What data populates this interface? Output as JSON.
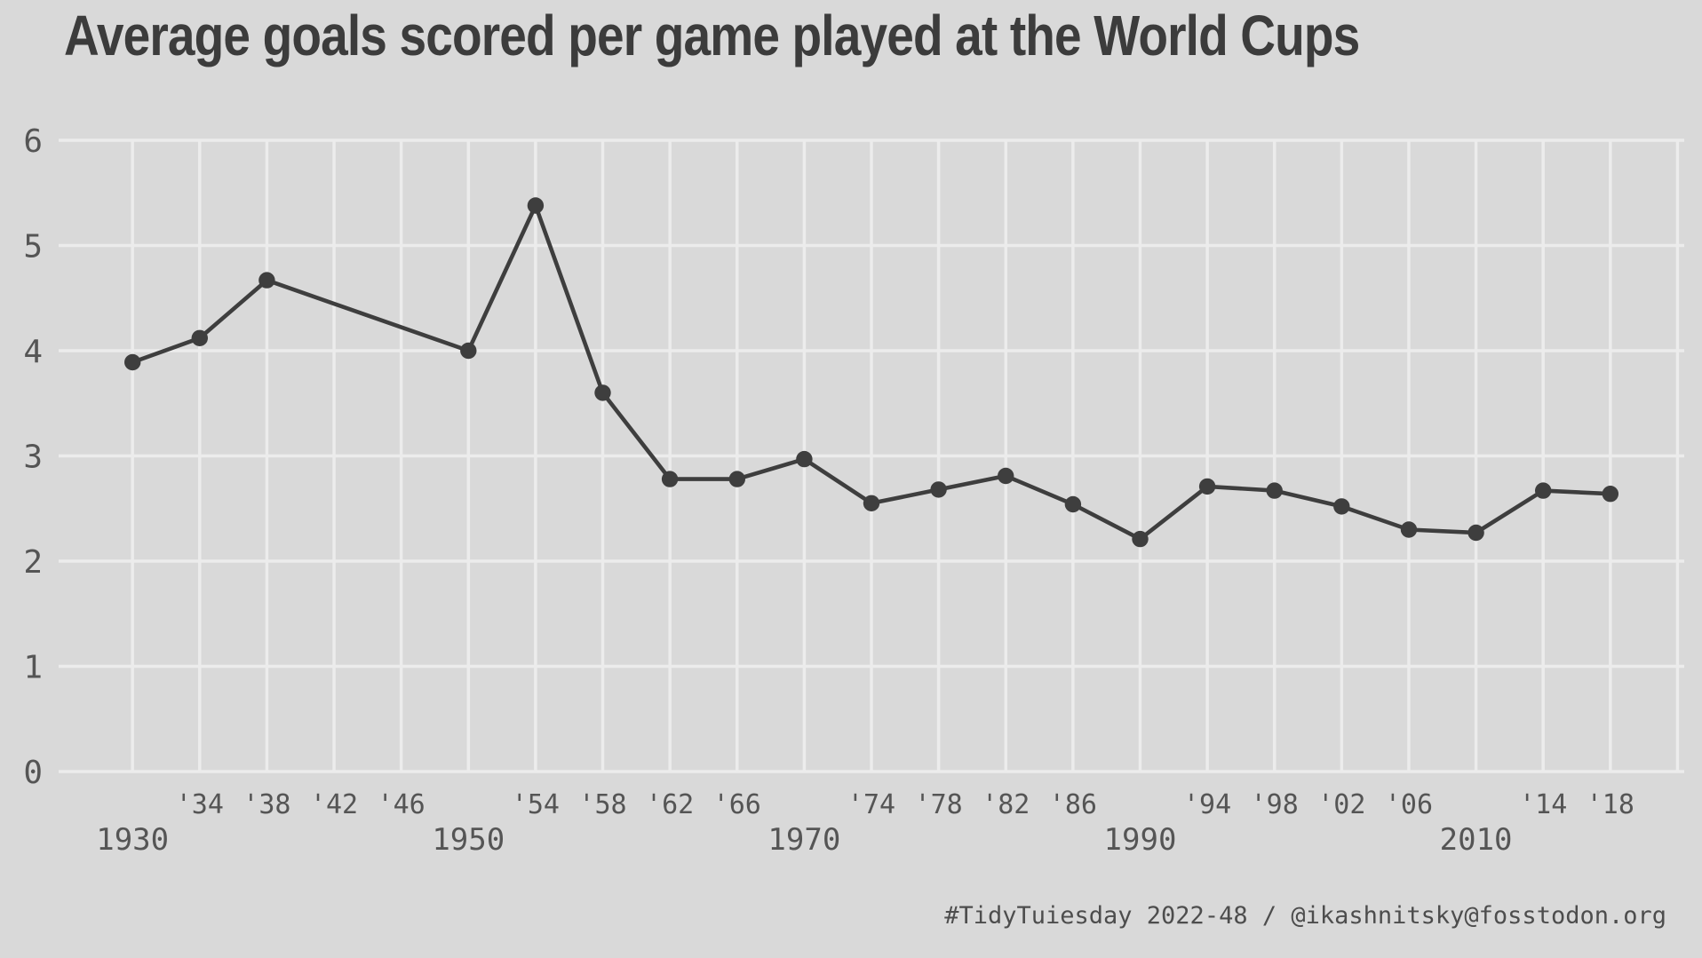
{
  "chart_data": {
    "type": "line",
    "title": "Average goals scored per game played at the World Cups",
    "caption": "#TidyTuiesday 2022-48 / @ikashnitsky@fosstodon.org",
    "xlabel": "",
    "ylabel": "",
    "xlim": [
      1925.6,
      2022.4
    ],
    "ylim": [
      0,
      6
    ],
    "grid": true,
    "legend_position": "none",
    "points": [
      {
        "year": 1930,
        "goals": 3.89
      },
      {
        "year": 1934,
        "goals": 4.12
      },
      {
        "year": 1938,
        "goals": 4.67
      },
      {
        "year": 1950,
        "goals": 4.0
      },
      {
        "year": 1954,
        "goals": 5.38
      },
      {
        "year": 1958,
        "goals": 3.6
      },
      {
        "year": 1962,
        "goals": 2.78
      },
      {
        "year": 1966,
        "goals": 2.78
      },
      {
        "year": 1970,
        "goals": 2.97
      },
      {
        "year": 1974,
        "goals": 2.55
      },
      {
        "year": 1978,
        "goals": 2.68
      },
      {
        "year": 1982,
        "goals": 2.81
      },
      {
        "year": 1986,
        "goals": 2.54
      },
      {
        "year": 1990,
        "goals": 2.21
      },
      {
        "year": 1994,
        "goals": 2.71
      },
      {
        "year": 1998,
        "goals": 2.67
      },
      {
        "year": 2002,
        "goals": 2.52
      },
      {
        "year": 2006,
        "goals": 2.3
      },
      {
        "year": 2010,
        "goals": 2.27
      },
      {
        "year": 2014,
        "goals": 2.67
      },
      {
        "year": 2018,
        "goals": 2.64
      }
    ],
    "y_axis": {
      "ticks": [
        0,
        1,
        2,
        3,
        4,
        5,
        6
      ]
    },
    "x_axis": {
      "grid_years": [
        1930,
        1934,
        1938,
        1942,
        1946,
        1950,
        1954,
        1958,
        1962,
        1966,
        1970,
        1974,
        1978,
        1982,
        1986,
        1990,
        1994,
        1998,
        2002,
        2006,
        2010,
        2014,
        2018,
        2022
      ],
      "minor_labels": [
        {
          "year": 1934,
          "label": "'34"
        },
        {
          "year": 1938,
          "label": "'38"
        },
        {
          "year": 1942,
          "label": "'42"
        },
        {
          "year": 1946,
          "label": "'46"
        },
        {
          "year": 1954,
          "label": "'54"
        },
        {
          "year": 1958,
          "label": "'58"
        },
        {
          "year": 1962,
          "label": "'62"
        },
        {
          "year": 1966,
          "label": "'66"
        },
        {
          "year": 1974,
          "label": "'74"
        },
        {
          "year": 1978,
          "label": "'78"
        },
        {
          "year": 1982,
          "label": "'82"
        },
        {
          "year": 1986,
          "label": "'86"
        },
        {
          "year": 1994,
          "label": "'94"
        },
        {
          "year": 1998,
          "label": "'98"
        },
        {
          "year": 2002,
          "label": "'02"
        },
        {
          "year": 2006,
          "label": "'06"
        },
        {
          "year": 2014,
          "label": "'14"
        },
        {
          "year": 2018,
          "label": "'18"
        }
      ],
      "decade_labels": [
        {
          "year": 1930,
          "label": "1930"
        },
        {
          "year": 1950,
          "label": "1950"
        },
        {
          "year": 1970,
          "label": "1970"
        },
        {
          "year": 1990,
          "label": "1990"
        },
        {
          "year": 2010,
          "label": "2010"
        }
      ]
    },
    "colors": {
      "background": "#d9d9d9",
      "gridline": "#ececec",
      "series": "#3e3e3e",
      "title": "#3c3c3c",
      "tick_label": "#555555",
      "caption": "#4d4d4d"
    }
  }
}
